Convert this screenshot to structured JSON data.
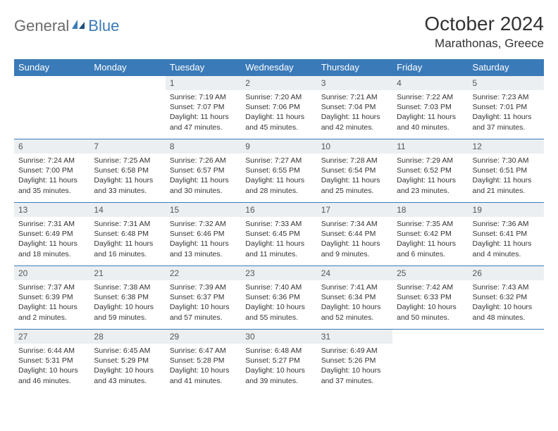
{
  "brand": {
    "part1": "General",
    "part2": "Blue"
  },
  "title": "October 2024",
  "location": "Marathonas, Greece",
  "colors": {
    "header_bg": "#3a7ab8",
    "header_fg": "#ffffff",
    "daynum_bg": "#eceff1",
    "daynum_fg": "#555555",
    "border": "#3a7ab8",
    "text": "#333333",
    "logo_gray": "#6b6b6b",
    "logo_blue": "#3a7ab8"
  },
  "day_headers": [
    "Sunday",
    "Monday",
    "Tuesday",
    "Wednesday",
    "Thursday",
    "Friday",
    "Saturday"
  ],
  "weeks": [
    [
      null,
      null,
      {
        "n": "1",
        "sr": "7:19 AM",
        "ss": "7:07 PM",
        "dl": "11 hours and 47 minutes."
      },
      {
        "n": "2",
        "sr": "7:20 AM",
        "ss": "7:06 PM",
        "dl": "11 hours and 45 minutes."
      },
      {
        "n": "3",
        "sr": "7:21 AM",
        "ss": "7:04 PM",
        "dl": "11 hours and 42 minutes."
      },
      {
        "n": "4",
        "sr": "7:22 AM",
        "ss": "7:03 PM",
        "dl": "11 hours and 40 minutes."
      },
      {
        "n": "5",
        "sr": "7:23 AM",
        "ss": "7:01 PM",
        "dl": "11 hours and 37 minutes."
      }
    ],
    [
      {
        "n": "6",
        "sr": "7:24 AM",
        "ss": "7:00 PM",
        "dl": "11 hours and 35 minutes."
      },
      {
        "n": "7",
        "sr": "7:25 AM",
        "ss": "6:58 PM",
        "dl": "11 hours and 33 minutes."
      },
      {
        "n": "8",
        "sr": "7:26 AM",
        "ss": "6:57 PM",
        "dl": "11 hours and 30 minutes."
      },
      {
        "n": "9",
        "sr": "7:27 AM",
        "ss": "6:55 PM",
        "dl": "11 hours and 28 minutes."
      },
      {
        "n": "10",
        "sr": "7:28 AM",
        "ss": "6:54 PM",
        "dl": "11 hours and 25 minutes."
      },
      {
        "n": "11",
        "sr": "7:29 AM",
        "ss": "6:52 PM",
        "dl": "11 hours and 23 minutes."
      },
      {
        "n": "12",
        "sr": "7:30 AM",
        "ss": "6:51 PM",
        "dl": "11 hours and 21 minutes."
      }
    ],
    [
      {
        "n": "13",
        "sr": "7:31 AM",
        "ss": "6:49 PM",
        "dl": "11 hours and 18 minutes."
      },
      {
        "n": "14",
        "sr": "7:31 AM",
        "ss": "6:48 PM",
        "dl": "11 hours and 16 minutes."
      },
      {
        "n": "15",
        "sr": "7:32 AM",
        "ss": "6:46 PM",
        "dl": "11 hours and 13 minutes."
      },
      {
        "n": "16",
        "sr": "7:33 AM",
        "ss": "6:45 PM",
        "dl": "11 hours and 11 minutes."
      },
      {
        "n": "17",
        "sr": "7:34 AM",
        "ss": "6:44 PM",
        "dl": "11 hours and 9 minutes."
      },
      {
        "n": "18",
        "sr": "7:35 AM",
        "ss": "6:42 PM",
        "dl": "11 hours and 6 minutes."
      },
      {
        "n": "19",
        "sr": "7:36 AM",
        "ss": "6:41 PM",
        "dl": "11 hours and 4 minutes."
      }
    ],
    [
      {
        "n": "20",
        "sr": "7:37 AM",
        "ss": "6:39 PM",
        "dl": "11 hours and 2 minutes."
      },
      {
        "n": "21",
        "sr": "7:38 AM",
        "ss": "6:38 PM",
        "dl": "10 hours and 59 minutes."
      },
      {
        "n": "22",
        "sr": "7:39 AM",
        "ss": "6:37 PM",
        "dl": "10 hours and 57 minutes."
      },
      {
        "n": "23",
        "sr": "7:40 AM",
        "ss": "6:36 PM",
        "dl": "10 hours and 55 minutes."
      },
      {
        "n": "24",
        "sr": "7:41 AM",
        "ss": "6:34 PM",
        "dl": "10 hours and 52 minutes."
      },
      {
        "n": "25",
        "sr": "7:42 AM",
        "ss": "6:33 PM",
        "dl": "10 hours and 50 minutes."
      },
      {
        "n": "26",
        "sr": "7:43 AM",
        "ss": "6:32 PM",
        "dl": "10 hours and 48 minutes."
      }
    ],
    [
      {
        "n": "27",
        "sr": "6:44 AM",
        "ss": "5:31 PM",
        "dl": "10 hours and 46 minutes."
      },
      {
        "n": "28",
        "sr": "6:45 AM",
        "ss": "5:29 PM",
        "dl": "10 hours and 43 minutes."
      },
      {
        "n": "29",
        "sr": "6:47 AM",
        "ss": "5:28 PM",
        "dl": "10 hours and 41 minutes."
      },
      {
        "n": "30",
        "sr": "6:48 AM",
        "ss": "5:27 PM",
        "dl": "10 hours and 39 minutes."
      },
      {
        "n": "31",
        "sr": "6:49 AM",
        "ss": "5:26 PM",
        "dl": "10 hours and 37 minutes."
      },
      null,
      null
    ]
  ],
  "labels": {
    "sunrise": "Sunrise: ",
    "sunset": "Sunset: ",
    "daylight": "Daylight: "
  }
}
